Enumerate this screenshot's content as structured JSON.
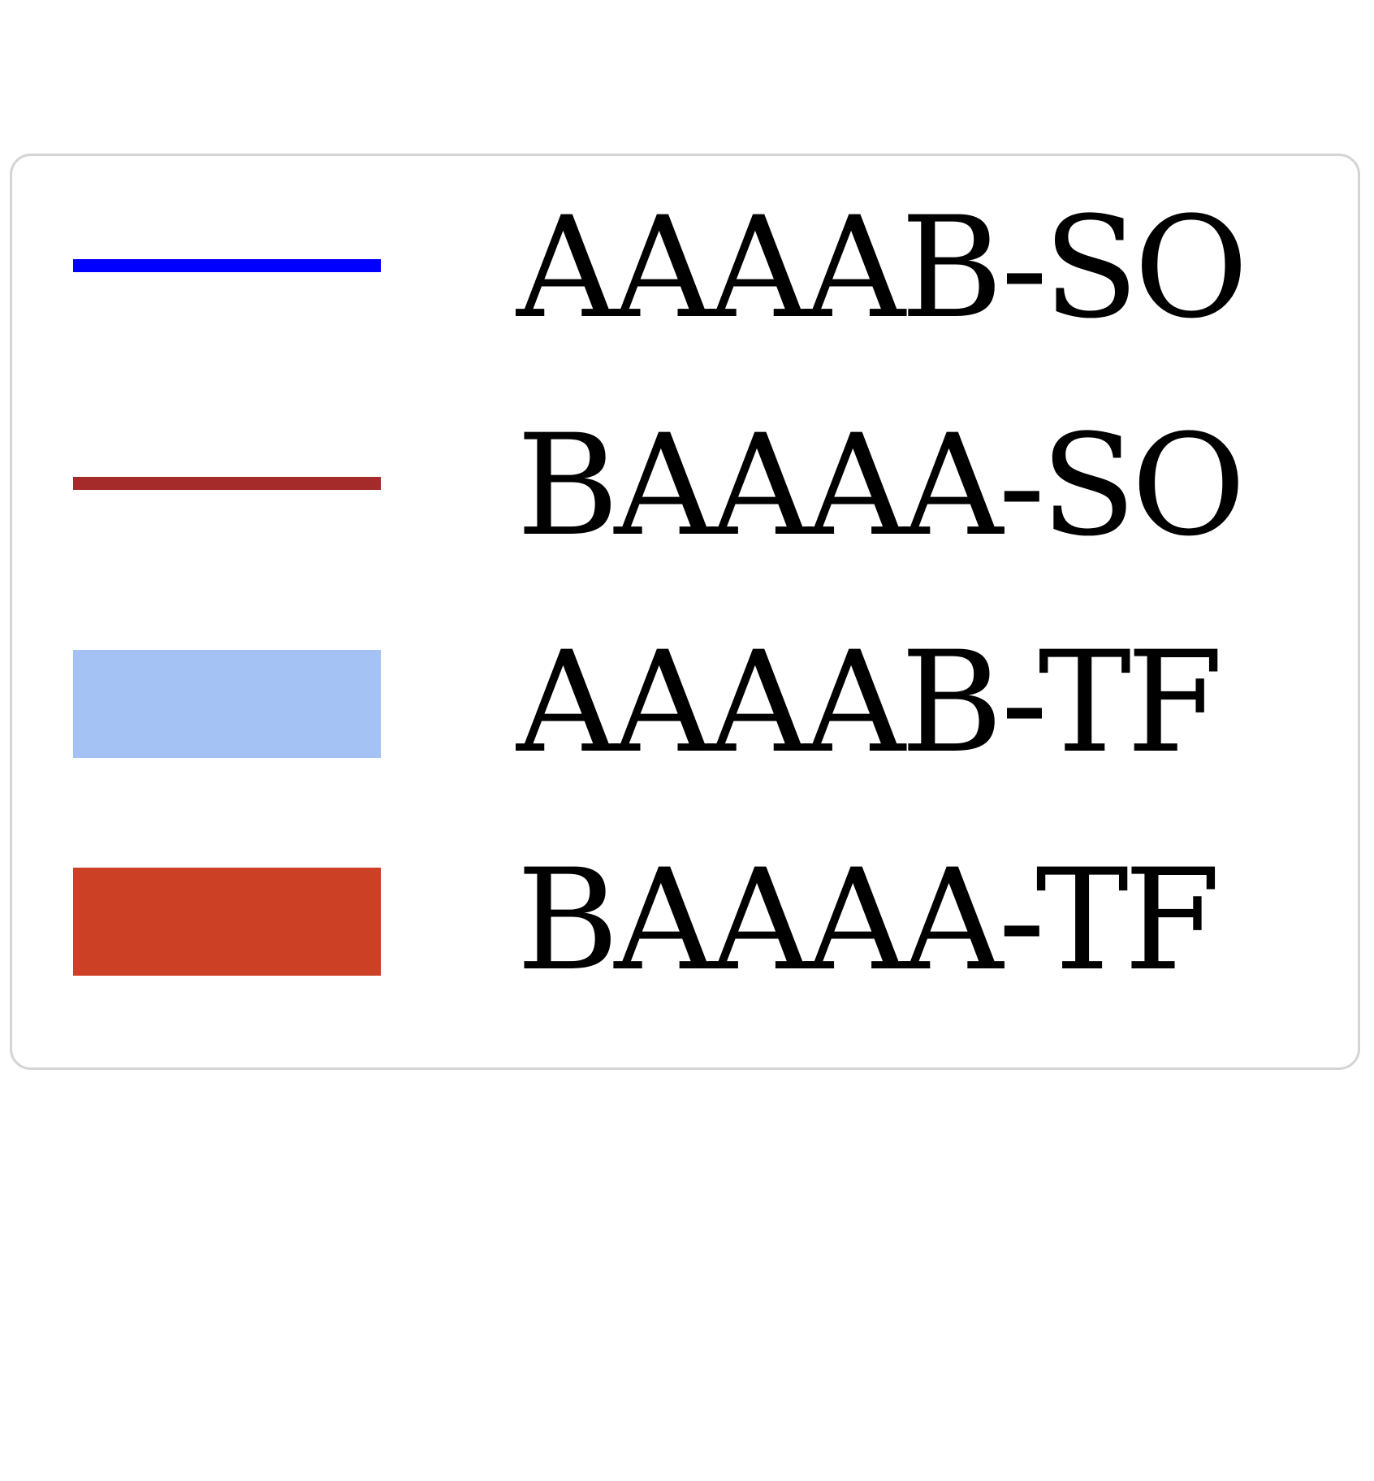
{
  "chart_data": {
    "type": "legend",
    "legend": {
      "placement": "center",
      "frame": true,
      "entries": [
        {
          "label": "AAAAB-SO",
          "marker": "line",
          "color": "#0000ff"
        },
        {
          "label": "BAAAA-SO",
          "marker": "line",
          "color": "#a52a2a"
        },
        {
          "label": "AAAAB-TF",
          "marker": "patch",
          "color": "#a4c2f4"
        },
        {
          "label": "BAAAA-TF",
          "marker": "patch",
          "color": "#cc4125"
        }
      ]
    }
  }
}
